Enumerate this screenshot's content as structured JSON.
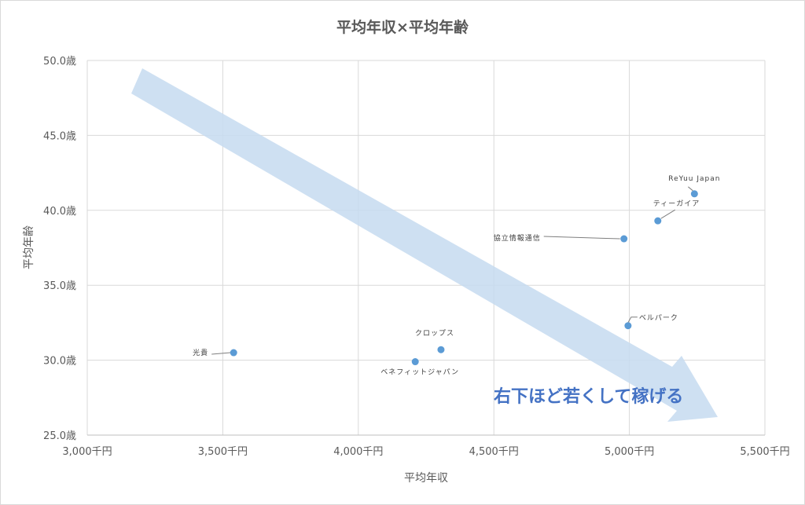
{
  "chart_data": {
    "type": "scatter",
    "title": "平均年収×平均年齢",
    "xlabel": "平均年収",
    "ylabel": "平均年齢",
    "xlim": [
      3000,
      5500
    ],
    "ylim": [
      25,
      50
    ],
    "x_ticks": [
      3000,
      3500,
      4000,
      4500,
      5000,
      5500
    ],
    "y_ticks": [
      25,
      30,
      35,
      40,
      45,
      50
    ],
    "x_tick_labels": [
      "3,000千円",
      "3,500千円",
      "4,000千円",
      "4,500千円",
      "5,000千円",
      "5,500千円"
    ],
    "y_tick_labels": [
      "25.0歳",
      "30.0歳",
      "35.0歳",
      "40.0歳",
      "45.0歳",
      "50.0歳"
    ],
    "grid": true,
    "legend": "none",
    "marker_color": "#5b9bd5",
    "points": [
      {
        "name": "光貴",
        "x": 3540,
        "y": 30.5
      },
      {
        "name": "クロップス",
        "x": 4305,
        "y": 30.7
      },
      {
        "name": "ベネフィットジャパン",
        "x": 4210,
        "y": 29.9
      },
      {
        "name": "協立情報通信",
        "x": 4980,
        "y": 38.1
      },
      {
        "name": "ベルパーク",
        "x": 4995,
        "y": 32.3
      },
      {
        "name": "ティーガイア",
        "x": 5105,
        "y": 39.3
      },
      {
        "name": "ReYuu Japan",
        "x": 5240,
        "y": 41.1
      }
    ],
    "annotation": {
      "text": "右下ほど若くして稼げる",
      "arrow_color": "#c5daf0",
      "text_color": "#4472c4"
    }
  }
}
